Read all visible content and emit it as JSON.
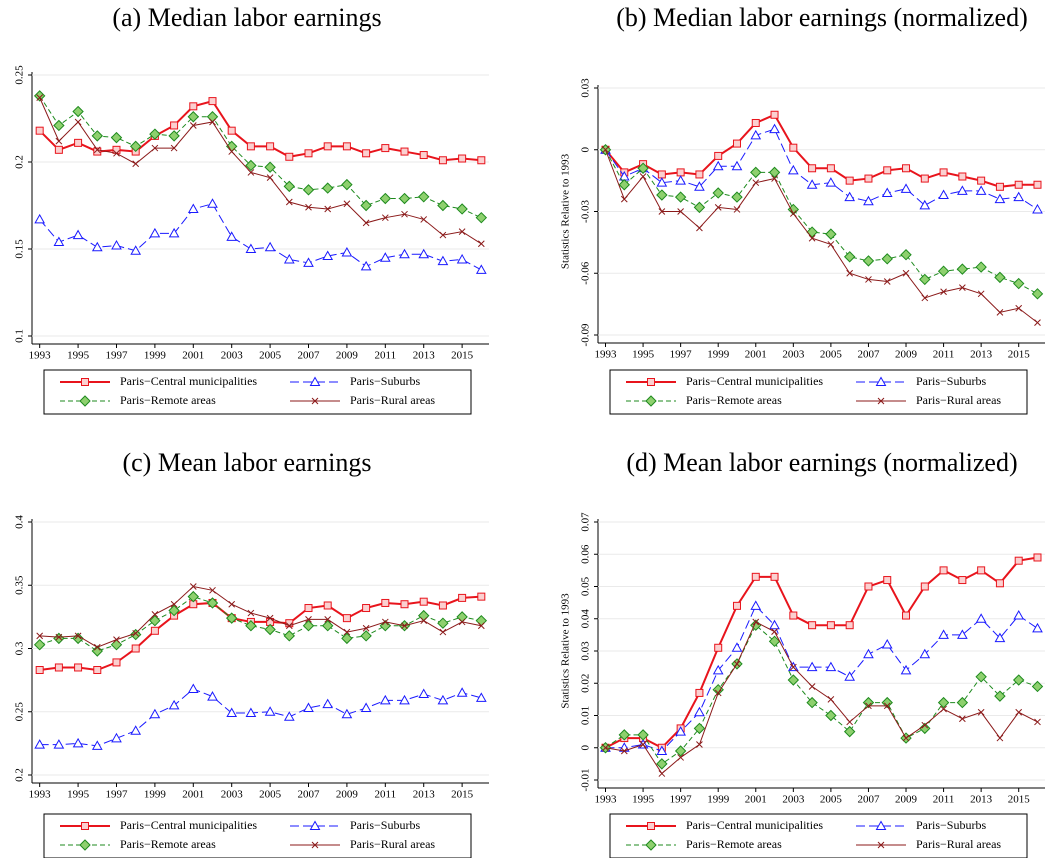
{
  "chart_data": [
    {
      "type": "line",
      "title": "(a) Median labor earnings",
      "x": [
        1993,
        1994,
        1995,
        1996,
        1997,
        1998,
        1999,
        2000,
        2001,
        2002,
        2003,
        2004,
        2005,
        2006,
        2007,
        2008,
        2009,
        2010,
        2011,
        2012,
        2013,
        2014,
        2015,
        2016
      ],
      "xlim": [
        1992.6,
        2016.4
      ],
      "xticks": [
        1993,
        1995,
        1997,
        1999,
        2001,
        2003,
        2005,
        2007,
        2009,
        2011,
        2013,
        2015
      ],
      "ylim": [
        0.1,
        0.25
      ],
      "yticks": [
        0.1,
        0.15,
        0.2,
        0.25
      ],
      "grid": true,
      "series": [
        {
          "name": "Paris−Central municipalities",
          "color": "#e8141c",
          "marker": "square",
          "dash": "solid",
          "values": [
            0.218,
            0.207,
            0.211,
            0.206,
            0.207,
            0.206,
            0.215,
            0.221,
            0.232,
            0.235,
            0.218,
            0.209,
            0.209,
            0.203,
            0.205,
            0.209,
            0.209,
            0.205,
            0.208,
            0.206,
            0.204,
            0.201,
            0.202,
            0.201
          ]
        },
        {
          "name": "Paris−Suburbs",
          "color": "#1a1aff",
          "marker": "triangle",
          "dash": "long",
          "values": [
            0.167,
            0.154,
            0.158,
            0.151,
            0.152,
            0.149,
            0.159,
            0.159,
            0.173,
            0.176,
            0.157,
            0.15,
            0.151,
            0.144,
            0.142,
            0.146,
            0.148,
            0.14,
            0.145,
            0.147,
            0.147,
            0.143,
            0.144,
            0.138
          ]
        },
        {
          "name": "Paris−Remote areas",
          "color": "#1e8a1e",
          "marker": "diamond",
          "dash": "short",
          "values": [
            0.238,
            0.221,
            0.229,
            0.215,
            0.214,
            0.209,
            0.216,
            0.215,
            0.226,
            0.226,
            0.209,
            0.198,
            0.197,
            0.186,
            0.184,
            0.185,
            0.187,
            0.175,
            0.179,
            0.179,
            0.18,
            0.175,
            0.173,
            0.168
          ]
        },
        {
          "name": "Paris−Rural areas",
          "color": "#8b1a1a",
          "marker": "x",
          "dash": "solid",
          "values": [
            0.237,
            0.212,
            0.223,
            0.207,
            0.205,
            0.199,
            0.208,
            0.208,
            0.221,
            0.223,
            0.206,
            0.194,
            0.191,
            0.177,
            0.174,
            0.173,
            0.176,
            0.165,
            0.168,
            0.17,
            0.167,
            0.158,
            0.16,
            0.153
          ]
        }
      ]
    },
    {
      "type": "line",
      "title": "(b) Median labor earnings (normalized)",
      "ylabel": "Statistics Relative to 1993",
      "x": [
        1993,
        1994,
        1995,
        1996,
        1997,
        1998,
        1999,
        2000,
        2001,
        2002,
        2003,
        2004,
        2005,
        2006,
        2007,
        2008,
        2009,
        2010,
        2011,
        2012,
        2013,
        2014,
        2015,
        2016
      ],
      "xlim": [
        1992.6,
        2016.4
      ],
      "xticks": [
        1993,
        1995,
        1997,
        1999,
        2001,
        2003,
        2005,
        2007,
        2009,
        2011,
        2013,
        2015
      ],
      "ylim": [
        -0.09,
        0.03
      ],
      "yticks": [
        -0.09,
        -0.06,
        -0.03,
        0,
        0.03
      ],
      "grid": true,
      "series": [
        {
          "name": "Paris−Central municipalities",
          "color": "#e8141c",
          "marker": "square",
          "dash": "solid",
          "values": [
            0,
            -0.011,
            -0.007,
            -0.012,
            -0.011,
            -0.012,
            -0.003,
            0.003,
            0.013,
            0.017,
            0.001,
            -0.009,
            -0.009,
            -0.015,
            -0.014,
            -0.01,
            -0.009,
            -0.014,
            -0.011,
            -0.013,
            -0.015,
            -0.018,
            -0.017,
            -0.017
          ]
        },
        {
          "name": "Paris−Suburbs",
          "color": "#1a1aff",
          "marker": "triangle",
          "dash": "long",
          "values": [
            0,
            -0.013,
            -0.009,
            -0.016,
            -0.015,
            -0.018,
            -0.008,
            -0.008,
            0.007,
            0.01,
            -0.01,
            -0.017,
            -0.016,
            -0.023,
            -0.025,
            -0.021,
            -0.019,
            -0.027,
            -0.022,
            -0.02,
            -0.02,
            -0.024,
            -0.023,
            -0.029
          ]
        },
        {
          "name": "Paris−Remote areas",
          "color": "#1e8a1e",
          "marker": "diamond",
          "dash": "short",
          "values": [
            0,
            -0.017,
            -0.009,
            -0.022,
            -0.023,
            -0.028,
            -0.021,
            -0.023,
            -0.011,
            -0.011,
            -0.029,
            -0.04,
            -0.041,
            -0.052,
            -0.054,
            -0.053,
            -0.051,
            -0.063,
            -0.059,
            -0.058,
            -0.057,
            -0.062,
            -0.065,
            -0.07
          ]
        },
        {
          "name": "Paris−Rural areas",
          "color": "#8b1a1a",
          "marker": "x",
          "dash": "solid",
          "values": [
            0,
            -0.024,
            -0.013,
            -0.03,
            -0.03,
            -0.038,
            -0.028,
            -0.029,
            -0.016,
            -0.014,
            -0.031,
            -0.043,
            -0.046,
            -0.06,
            -0.063,
            -0.064,
            -0.06,
            -0.072,
            -0.069,
            -0.067,
            -0.07,
            -0.079,
            -0.077,
            -0.084
          ]
        }
      ]
    },
    {
      "type": "line",
      "title": "(c) Mean labor earnings",
      "x": [
        1993,
        1994,
        1995,
        1996,
        1997,
        1998,
        1999,
        2000,
        2001,
        2002,
        2003,
        2004,
        2005,
        2006,
        2007,
        2008,
        2009,
        2010,
        2011,
        2012,
        2013,
        2014,
        2015,
        2016
      ],
      "xlim": [
        1992.6,
        2016.4
      ],
      "xticks": [
        1993,
        1995,
        1997,
        1999,
        2001,
        2003,
        2005,
        2007,
        2009,
        2011,
        2013,
        2015
      ],
      "ylim": [
        0.2,
        0.4
      ],
      "yticks": [
        0.2,
        0.25,
        0.3,
        0.35,
        0.4
      ],
      "grid": true,
      "series": [
        {
          "name": "Paris−Central municipalities",
          "color": "#e8141c",
          "marker": "square",
          "dash": "solid",
          "values": [
            0.283,
            0.285,
            0.285,
            0.283,
            0.289,
            0.3,
            0.314,
            0.326,
            0.335,
            0.336,
            0.324,
            0.321,
            0.321,
            0.32,
            0.332,
            0.334,
            0.324,
            0.332,
            0.336,
            0.335,
            0.337,
            0.334,
            0.34,
            0.341
          ]
        },
        {
          "name": "Paris−Suburbs",
          "color": "#1a1aff",
          "marker": "triangle",
          "dash": "long",
          "values": [
            0.224,
            0.224,
            0.225,
            0.223,
            0.229,
            0.235,
            0.248,
            0.255,
            0.268,
            0.262,
            0.249,
            0.249,
            0.25,
            0.246,
            0.253,
            0.256,
            0.248,
            0.253,
            0.259,
            0.259,
            0.264,
            0.259,
            0.265,
            0.261
          ]
        },
        {
          "name": "Paris−Remote areas",
          "color": "#1e8a1e",
          "marker": "diamond",
          "dash": "short",
          "values": [
            0.303,
            0.308,
            0.308,
            0.298,
            0.303,
            0.311,
            0.322,
            0.33,
            0.341,
            0.336,
            0.324,
            0.318,
            0.315,
            0.31,
            0.318,
            0.318,
            0.308,
            0.31,
            0.318,
            0.318,
            0.326,
            0.32,
            0.325,
            0.322
          ]
        },
        {
          "name": "Paris−Rural areas",
          "color": "#8b1a1a",
          "marker": "x",
          "dash": "solid",
          "values": [
            0.31,
            0.309,
            0.31,
            0.301,
            0.307,
            0.312,
            0.327,
            0.335,
            0.349,
            0.346,
            0.335,
            0.328,
            0.324,
            0.318,
            0.323,
            0.323,
            0.313,
            0.316,
            0.321,
            0.318,
            0.322,
            0.313,
            0.321,
            0.318
          ]
        }
      ]
    },
    {
      "type": "line",
      "title": "(d) Mean labor earnings (normalized)",
      "ylabel": "Statistics Relative to 1993",
      "x": [
        1993,
        1994,
        1995,
        1996,
        1997,
        1998,
        1999,
        2000,
        2001,
        2002,
        2003,
        2004,
        2005,
        2006,
        2007,
        2008,
        2009,
        2010,
        2011,
        2012,
        2013,
        2014,
        2015,
        2016
      ],
      "xlim": [
        1992.6,
        2016.4
      ],
      "xticks": [
        1993,
        1995,
        1997,
        1999,
        2001,
        2003,
        2005,
        2007,
        2009,
        2011,
        2013,
        2015
      ],
      "ylim": [
        -0.01,
        0.07
      ],
      "yticks": [
        -0.01,
        0,
        0.01,
        0.02,
        0.03,
        0.04,
        0.05,
        0.06,
        0.07
      ],
      "grid": true,
      "series": [
        {
          "name": "Paris−Central municipalities",
          "color": "#e8141c",
          "marker": "square",
          "dash": "solid",
          "values": [
            0,
            0.003,
            0.003,
            0,
            0.006,
            0.017,
            0.031,
            0.044,
            0.053,
            0.053,
            0.041,
            0.038,
            0.038,
            0.038,
            0.05,
            0.052,
            0.041,
            0.05,
            0.055,
            0.052,
            0.055,
            0.051,
            0.058,
            0.059
          ]
        },
        {
          "name": "Paris−Suburbs",
          "color": "#1a1aff",
          "marker": "triangle",
          "dash": "long",
          "values": [
            0,
            0,
            0.001,
            -0.001,
            0.005,
            0.011,
            0.024,
            0.031,
            0.044,
            0.038,
            0.025,
            0.025,
            0.025,
            0.022,
            0.029,
            0.032,
            0.024,
            0.029,
            0.035,
            0.035,
            0.04,
            0.034,
            0.041,
            0.037
          ]
        },
        {
          "name": "Paris−Remote areas",
          "color": "#1e8a1e",
          "marker": "diamond",
          "dash": "short",
          "values": [
            0,
            0.004,
            0.004,
            -0.005,
            -0.001,
            0.006,
            0.018,
            0.026,
            0.038,
            0.033,
            0.021,
            0.014,
            0.01,
            0.005,
            0.014,
            0.014,
            0.003,
            0.006,
            0.014,
            0.014,
            0.022,
            0.016,
            0.021,
            0.019
          ]
        },
        {
          "name": "Paris−Rural areas",
          "color": "#8b1a1a",
          "marker": "x",
          "dash": "solid",
          "values": [
            0,
            -0.001,
            0.001,
            -0.008,
            -0.003,
            0.001,
            0.017,
            0.026,
            0.039,
            0.036,
            0.025,
            0.019,
            0.015,
            0.008,
            0.013,
            0.013,
            0.003,
            0.007,
            0.012,
            0.009,
            0.011,
            0.003,
            0.011,
            0.008
          ]
        }
      ]
    }
  ]
}
